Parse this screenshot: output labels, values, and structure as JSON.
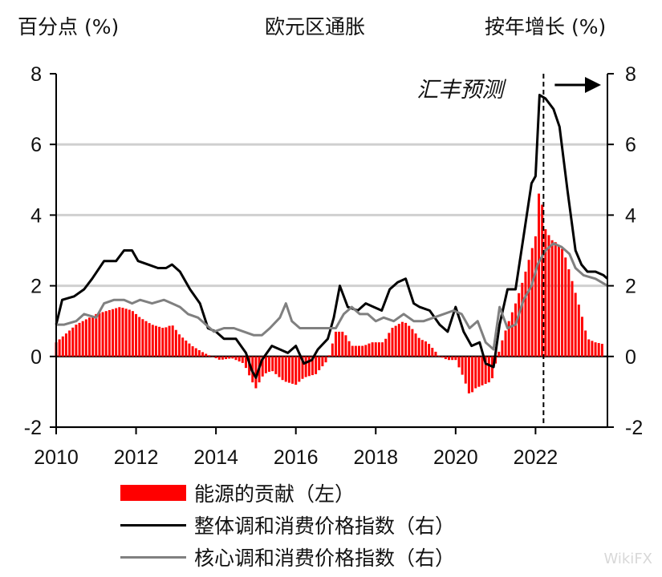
{
  "header": {
    "left_unit": "百分点 (%)",
    "title": "欧元区通胀",
    "right_unit": "按年增长 (%)"
  },
  "chart_data": {
    "type": "bar+line",
    "title": "欧元区通胀",
    "left_axis_label": "百分点 (%)",
    "right_axis_label": "按年增长 (%)",
    "ylim_left": [
      -2,
      8
    ],
    "ylim_right": [
      -2,
      8
    ],
    "yticks": [
      -2,
      0,
      2,
      4,
      6,
      8
    ],
    "xlim": [
      2010,
      2023.8
    ],
    "xticks": [
      2010,
      2012,
      2014,
      2016,
      2018,
      2020,
      2022
    ],
    "forecast_start": 2022.2,
    "forecast_label": "汇丰预测",
    "watermark": "WikiFX",
    "series": [
      {
        "name": "能源的贡献（左）",
        "kind": "bar",
        "color": "#ff0000",
        "points": [
          [
            2010.0,
            0.4
          ],
          [
            2010.5,
            0.9
          ],
          [
            2011.0,
            1.2
          ],
          [
            2011.3,
            1.3
          ],
          [
            2011.6,
            1.4
          ],
          [
            2011.9,
            1.3
          ],
          [
            2012.1,
            1.1
          ],
          [
            2012.4,
            0.9
          ],
          [
            2012.7,
            0.8
          ],
          [
            2012.9,
            0.9
          ],
          [
            2013.1,
            0.6
          ],
          [
            2013.4,
            0.3
          ],
          [
            2013.7,
            0.1
          ],
          [
            2013.9,
            0.0
          ],
          [
            2014.1,
            -0.1
          ],
          [
            2014.4,
            -0.05
          ],
          [
            2014.7,
            -0.2
          ],
          [
            2014.9,
            -0.7
          ],
          [
            2015.0,
            -0.9
          ],
          [
            2015.2,
            -0.5
          ],
          [
            2015.4,
            -0.4
          ],
          [
            2015.7,
            -0.7
          ],
          [
            2016.0,
            -0.8
          ],
          [
            2016.2,
            -0.6
          ],
          [
            2016.5,
            -0.5
          ],
          [
            2016.8,
            -0.1
          ],
          [
            2017.0,
            0.7
          ],
          [
            2017.2,
            0.7
          ],
          [
            2017.4,
            0.3
          ],
          [
            2017.7,
            0.3
          ],
          [
            2017.9,
            0.4
          ],
          [
            2018.2,
            0.4
          ],
          [
            2018.4,
            0.8
          ],
          [
            2018.7,
            1.0
          ],
          [
            2018.9,
            0.8
          ],
          [
            2019.1,
            0.5
          ],
          [
            2019.3,
            0.4
          ],
          [
            2019.6,
            0.0
          ],
          [
            2019.8,
            -0.1
          ],
          [
            2020.0,
            -0.1
          ],
          [
            2020.2,
            -0.6
          ],
          [
            2020.35,
            -1.1
          ],
          [
            2020.5,
            -0.9
          ],
          [
            2020.7,
            -0.8
          ],
          [
            2020.9,
            -0.7
          ],
          [
            2021.0,
            -0.2
          ],
          [
            2021.15,
            0.4
          ],
          [
            2021.3,
            0.9
          ],
          [
            2021.5,
            1.5
          ],
          [
            2021.7,
            2.2
          ],
          [
            2021.85,
            2.8
          ],
          [
            2022.0,
            3.4
          ],
          [
            2022.1,
            4.85
          ],
          [
            2022.25,
            3.6
          ],
          [
            2022.4,
            3.3
          ],
          [
            2022.55,
            3.2
          ],
          [
            2022.7,
            3.0
          ],
          [
            2022.85,
            2.4
          ],
          [
            2023.0,
            1.8
          ],
          [
            2023.15,
            1.2
          ],
          [
            2023.3,
            0.5
          ],
          [
            2023.5,
            0.4
          ],
          [
            2023.7,
            0.35
          ]
        ]
      },
      {
        "name": "整体调和消费价格指数（右）",
        "kind": "line",
        "color": "#000000",
        "points": [
          [
            2010.0,
            0.9
          ],
          [
            2010.15,
            1.6
          ],
          [
            2010.45,
            1.7
          ],
          [
            2010.7,
            1.9
          ],
          [
            2010.9,
            2.2
          ],
          [
            2011.2,
            2.7
          ],
          [
            2011.5,
            2.7
          ],
          [
            2011.7,
            3.0
          ],
          [
            2011.9,
            3.0
          ],
          [
            2012.05,
            2.7
          ],
          [
            2012.3,
            2.6
          ],
          [
            2012.55,
            2.5
          ],
          [
            2012.75,
            2.5
          ],
          [
            2012.9,
            2.6
          ],
          [
            2013.1,
            2.4
          ],
          [
            2013.35,
            1.9
          ],
          [
            2013.6,
            1.5
          ],
          [
            2013.8,
            0.8
          ],
          [
            2014.0,
            0.7
          ],
          [
            2014.2,
            0.5
          ],
          [
            2014.5,
            0.5
          ],
          [
            2014.75,
            0.1
          ],
          [
            2014.9,
            -0.4
          ],
          [
            2015.0,
            -0.6
          ],
          [
            2015.15,
            -0.1
          ],
          [
            2015.4,
            0.3
          ],
          [
            2015.6,
            0.2
          ],
          [
            2015.8,
            0.1
          ],
          [
            2016.0,
            0.3
          ],
          [
            2016.2,
            -0.2
          ],
          [
            2016.4,
            -0.1
          ],
          [
            2016.55,
            0.2
          ],
          [
            2016.8,
            0.5
          ],
          [
            2016.95,
            1.1
          ],
          [
            2017.1,
            2.0
          ],
          [
            2017.3,
            1.4
          ],
          [
            2017.55,
            1.3
          ],
          [
            2017.75,
            1.5
          ],
          [
            2017.95,
            1.4
          ],
          [
            2018.15,
            1.3
          ],
          [
            2018.35,
            1.9
          ],
          [
            2018.55,
            2.1
          ],
          [
            2018.75,
            2.2
          ],
          [
            2018.95,
            1.5
          ],
          [
            2019.1,
            1.4
          ],
          [
            2019.35,
            1.3
          ],
          [
            2019.6,
            0.9
          ],
          [
            2019.8,
            0.7
          ],
          [
            2020.0,
            1.4
          ],
          [
            2020.2,
            0.7
          ],
          [
            2020.4,
            0.3
          ],
          [
            2020.6,
            0.4
          ],
          [
            2020.75,
            -0.2
          ],
          [
            2020.95,
            -0.3
          ],
          [
            2021.1,
            0.9
          ],
          [
            2021.3,
            1.9
          ],
          [
            2021.5,
            1.9
          ],
          [
            2021.7,
            3.4
          ],
          [
            2021.9,
            4.9
          ],
          [
            2022.0,
            5.1
          ],
          [
            2022.1,
            7.4
          ],
          [
            2022.25,
            7.3
          ],
          [
            2022.45,
            7.0
          ],
          [
            2022.6,
            6.5
          ],
          [
            2022.8,
            4.7
          ],
          [
            2023.0,
            3.0
          ],
          [
            2023.15,
            2.6
          ],
          [
            2023.3,
            2.4
          ],
          [
            2023.5,
            2.4
          ],
          [
            2023.7,
            2.3
          ],
          [
            2023.8,
            2.2
          ]
        ]
      },
      {
        "name": "核心调和消费价格指数（右）",
        "kind": "line",
        "color": "#808080",
        "points": [
          [
            2010.0,
            0.9
          ],
          [
            2010.2,
            0.9
          ],
          [
            2010.5,
            1.0
          ],
          [
            2010.7,
            1.2
          ],
          [
            2011.0,
            1.1
          ],
          [
            2011.2,
            1.5
          ],
          [
            2011.45,
            1.6
          ],
          [
            2011.7,
            1.6
          ],
          [
            2011.9,
            1.5
          ],
          [
            2012.1,
            1.6
          ],
          [
            2012.4,
            1.5
          ],
          [
            2012.7,
            1.6
          ],
          [
            2012.9,
            1.5
          ],
          [
            2013.1,
            1.4
          ],
          [
            2013.3,
            1.2
          ],
          [
            2013.55,
            1.1
          ],
          [
            2013.75,
            0.9
          ],
          [
            2013.95,
            0.7
          ],
          [
            2014.2,
            0.8
          ],
          [
            2014.45,
            0.8
          ],
          [
            2014.7,
            0.7
          ],
          [
            2014.95,
            0.6
          ],
          [
            2015.15,
            0.6
          ],
          [
            2015.35,
            0.8
          ],
          [
            2015.6,
            1.1
          ],
          [
            2015.75,
            1.5
          ],
          [
            2015.9,
            1.0
          ],
          [
            2016.1,
            0.8
          ],
          [
            2016.3,
            0.8
          ],
          [
            2016.55,
            0.8
          ],
          [
            2016.8,
            0.8
          ],
          [
            2017.0,
            0.8
          ],
          [
            2017.2,
            1.2
          ],
          [
            2017.4,
            1.4
          ],
          [
            2017.6,
            1.2
          ],
          [
            2017.8,
            1.2
          ],
          [
            2018.0,
            1.0
          ],
          [
            2018.2,
            1.1
          ],
          [
            2018.45,
            1.0
          ],
          [
            2018.7,
            1.2
          ],
          [
            2018.95,
            1.0
          ],
          [
            2019.2,
            1.0
          ],
          [
            2019.45,
            1.1
          ],
          [
            2019.7,
            1.2
          ],
          [
            2019.95,
            1.3
          ],
          [
            2020.15,
            1.2
          ],
          [
            2020.35,
            0.8
          ],
          [
            2020.55,
            1.0
          ],
          [
            2020.75,
            0.4
          ],
          [
            2020.95,
            0.2
          ],
          [
            2021.1,
            1.4
          ],
          [
            2021.3,
            0.8
          ],
          [
            2021.5,
            0.9
          ],
          [
            2021.7,
            1.6
          ],
          [
            2021.9,
            2.0
          ],
          [
            2022.05,
            2.6
          ],
          [
            2022.25,
            3.0
          ],
          [
            2022.45,
            3.2
          ],
          [
            2022.65,
            3.1
          ],
          [
            2022.85,
            2.9
          ],
          [
            2023.0,
            2.5
          ],
          [
            2023.2,
            2.3
          ],
          [
            2023.5,
            2.2
          ],
          [
            2023.8,
            2.0
          ]
        ]
      }
    ]
  },
  "legend": [
    {
      "label": "能源的贡献（左）",
      "kind": "bar",
      "color": "#ff0000"
    },
    {
      "label": "整体调和消费价格指数（右）",
      "kind": "line",
      "color": "#000000"
    },
    {
      "label": "核心调和消费价格指数（右）",
      "kind": "line",
      "color": "#808080"
    }
  ]
}
